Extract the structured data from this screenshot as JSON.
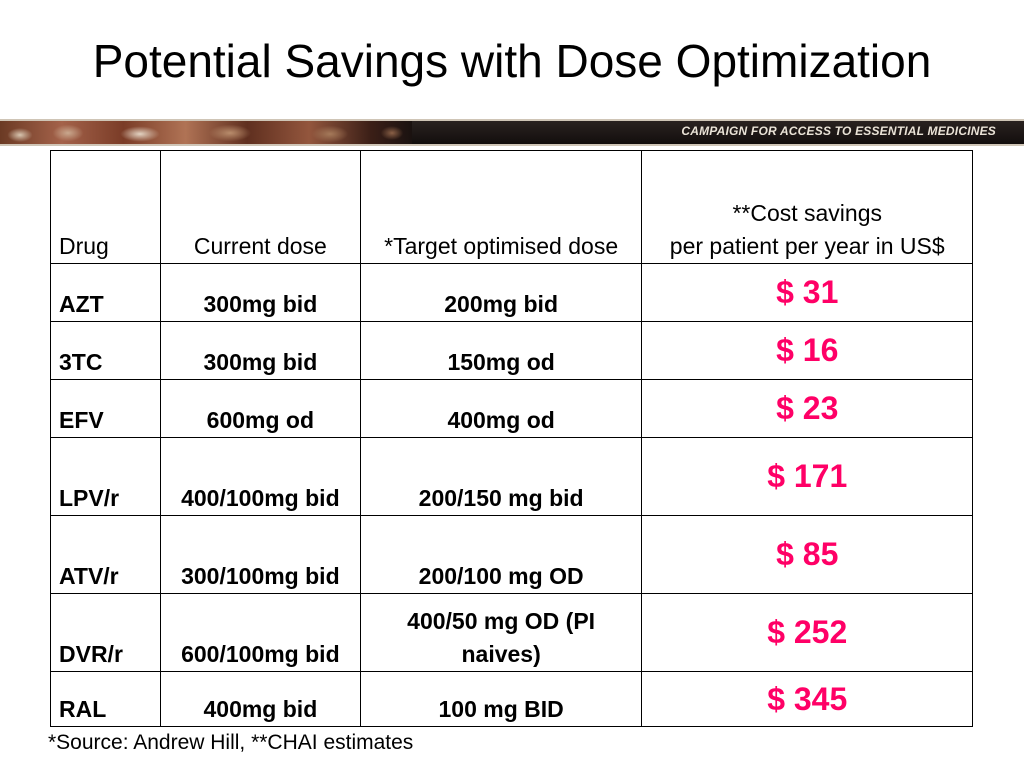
{
  "title": "Potential Savings with Dose Optimization",
  "banner": {
    "text": "CAMPAIGN FOR ACCESS TO ESSENTIAL MEDICINES"
  },
  "table": {
    "headers": {
      "drug": "Drug",
      "current": "Current dose",
      "target": "*Target optimised dose",
      "cost_line1": "**Cost savings",
      "cost_line2": "per patient per year in US$"
    },
    "rows": [
      {
        "drug": "AZT",
        "current": "300mg bid",
        "target": "200mg bid",
        "savings": "$ 31"
      },
      {
        "drug": "3TC",
        "current": "300mg bid",
        "target": "150mg od",
        "savings": "$ 16"
      },
      {
        "drug": "EFV",
        "current": "600mg od",
        "target": "400mg od",
        "savings": "$ 23"
      },
      {
        "drug": "LPV/r",
        "current": "400/100mg bid",
        "target": "200/150 mg bid",
        "savings": "$ 171"
      },
      {
        "drug": "ATV/r",
        "current": "300/100mg bid",
        "target": "200/100 mg OD",
        "savings": "$ 85"
      },
      {
        "drug": "DVR/r",
        "current": "600/100mg bid",
        "target": "400/50 mg OD (PI naives)",
        "savings": "$ 252"
      },
      {
        "drug": "RAL",
        "current": "400mg bid",
        "target": "100 mg BID",
        "savings": "$ 345"
      }
    ]
  },
  "footnote": "*Source: Andrew Hill, **CHAI estimates",
  "colors": {
    "savings_text": "#ff0066",
    "banner_bg": "#120e0d"
  }
}
